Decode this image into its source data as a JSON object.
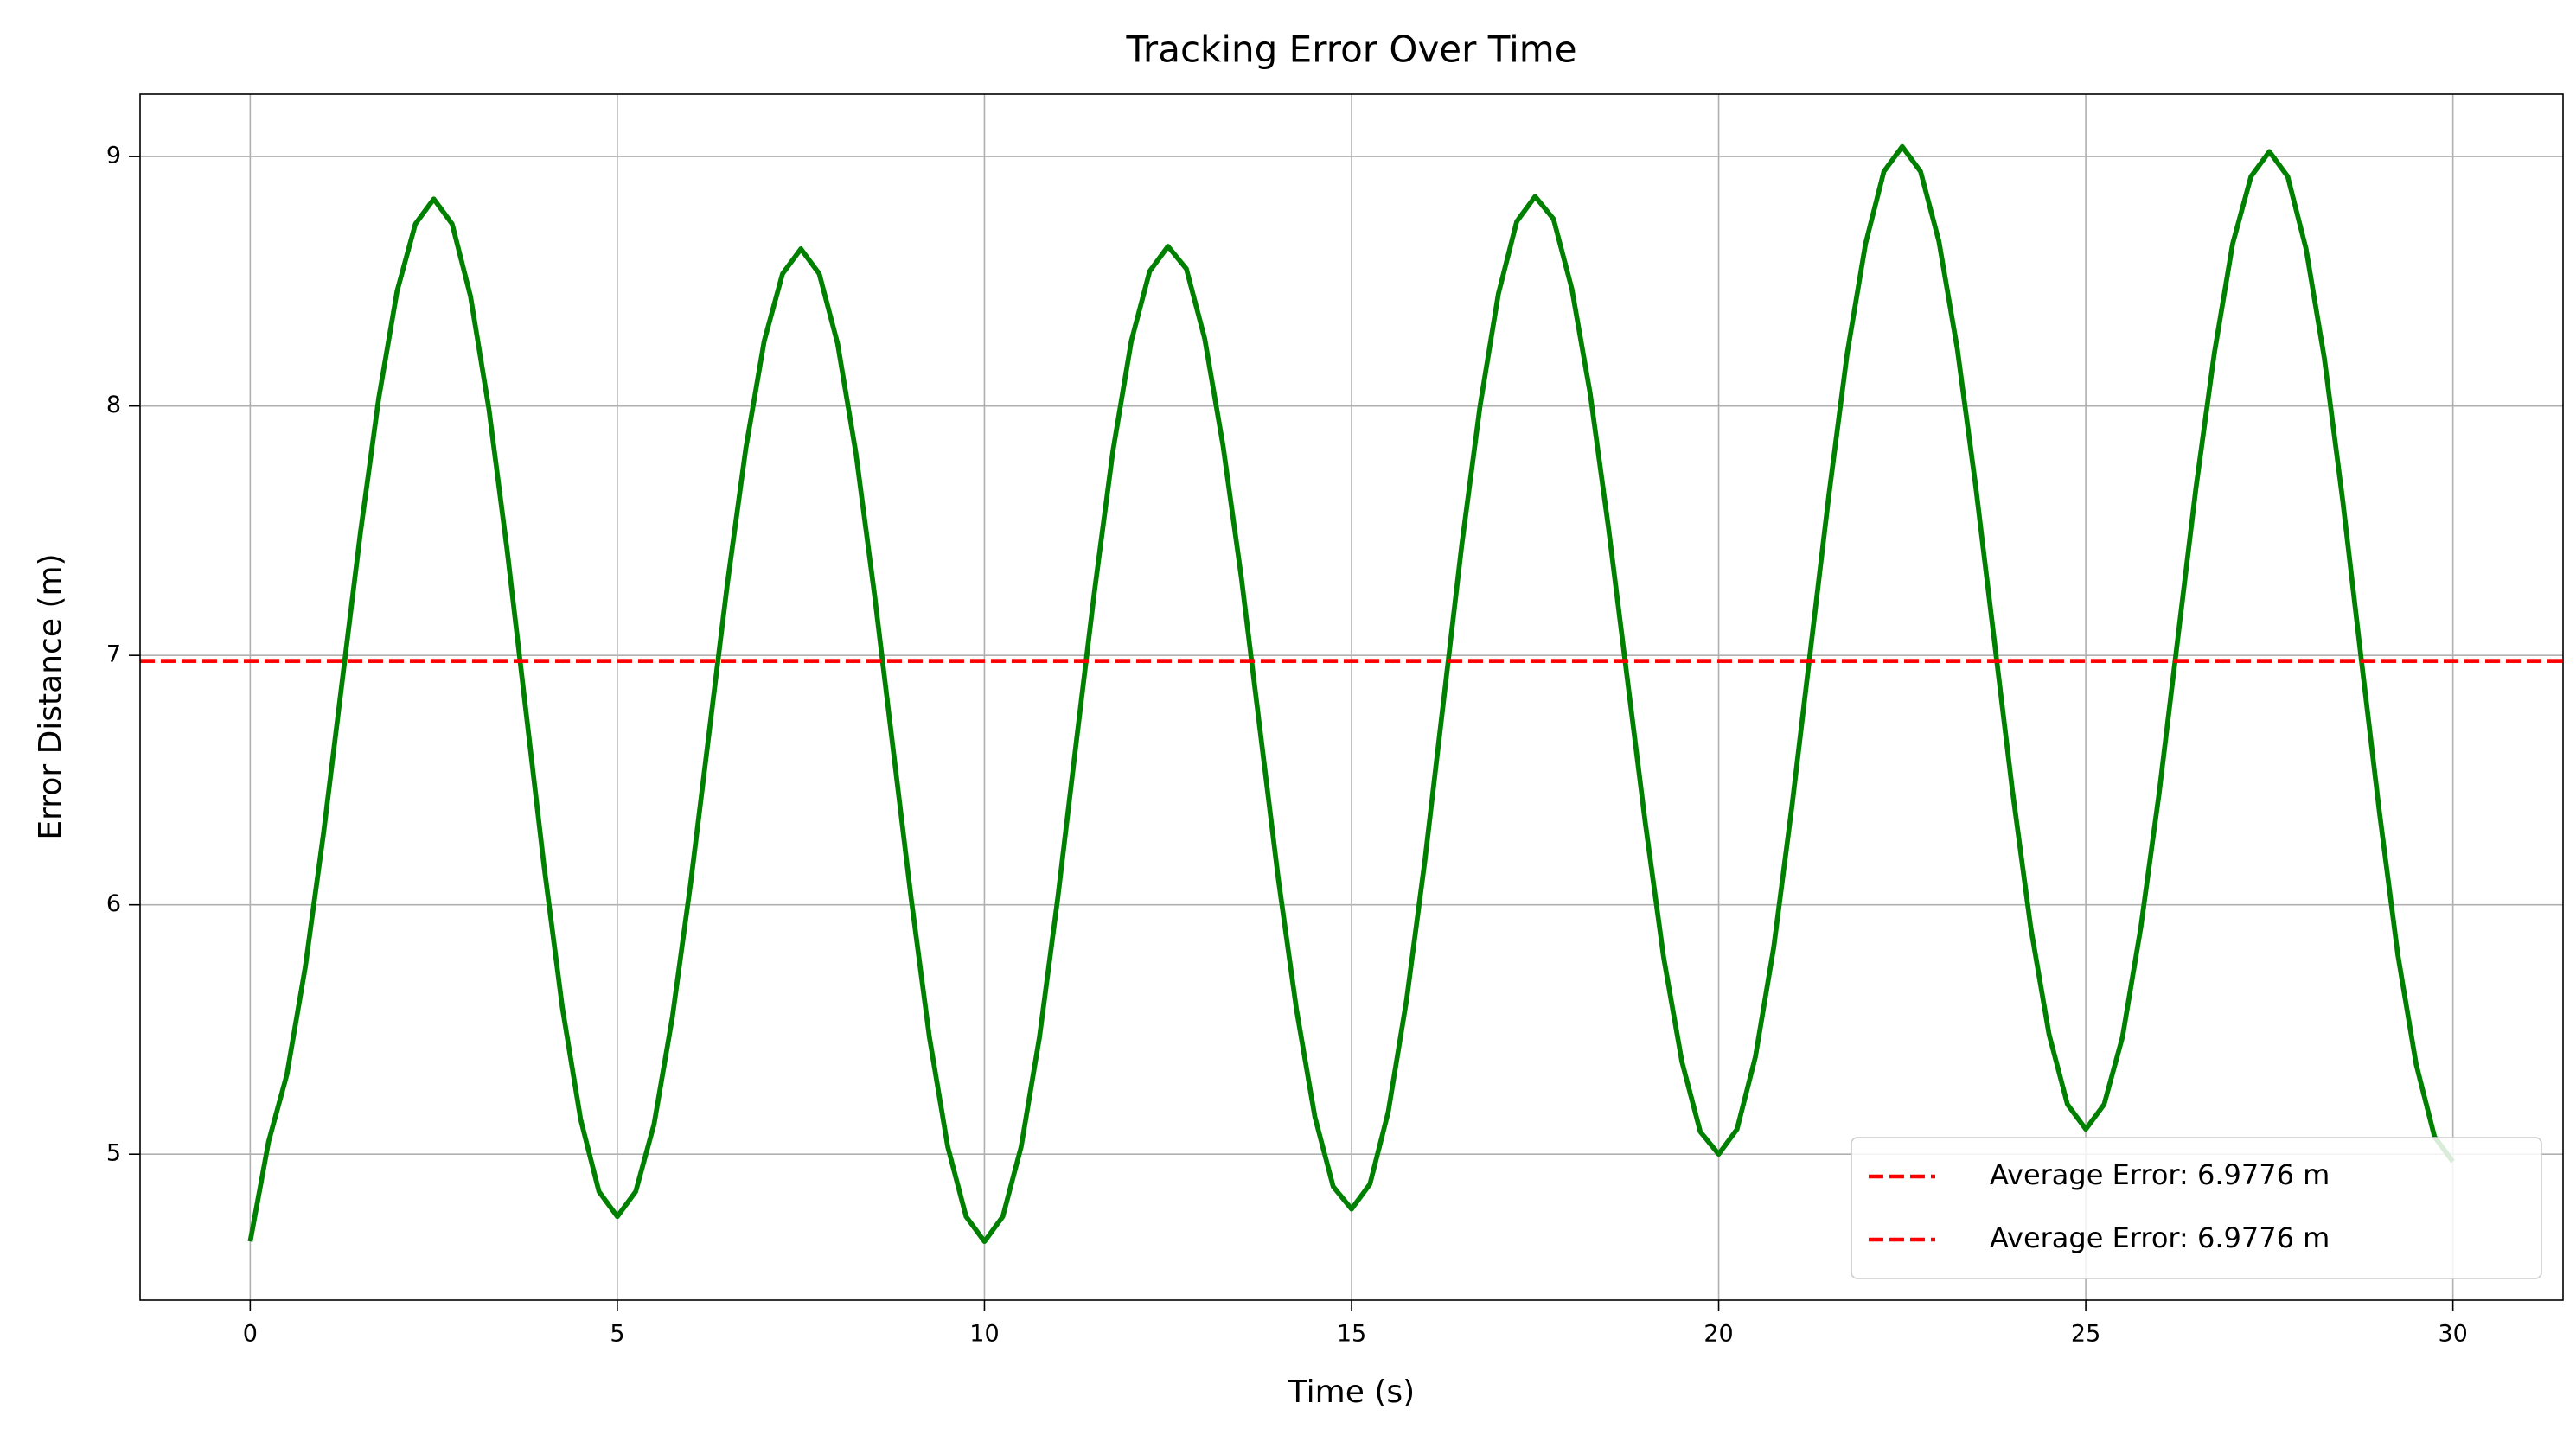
{
  "chart_data": {
    "type": "line",
    "title": "Tracking Error Over Time",
    "x_label": "Time (s)",
    "y_label": "Error Distance (m)",
    "x": [
      0,
      0.25,
      0.5,
      0.75,
      1,
      1.25,
      1.5,
      1.75,
      2,
      2.25,
      2.5,
      2.75,
      3,
      3.25,
      3.5,
      3.75,
      4,
      4.25,
      4.5,
      4.75,
      5,
      5.25,
      5.5,
      5.75,
      6,
      6.25,
      6.5,
      6.75,
      7,
      7.25,
      7.5,
      7.75,
      8,
      8.25,
      8.5,
      8.75,
      9,
      9.25,
      9.5,
      9.75,
      10,
      10.25,
      10.5,
      10.75,
      11,
      11.25,
      11.5,
      11.75,
      12,
      12.25,
      12.5,
      12.75,
      13,
      13.25,
      13.5,
      13.75,
      14,
      14.25,
      14.5,
      14.75,
      15,
      15.25,
      15.5,
      15.75,
      16,
      16.25,
      16.5,
      16.75,
      17,
      17.25,
      17.5,
      17.75,
      18,
      18.25,
      18.5,
      18.75,
      19,
      19.25,
      19.5,
      19.75,
      20,
      20.25,
      20.5,
      20.75,
      21,
      21.25,
      21.5,
      21.75,
      22,
      22.25,
      22.5,
      22.75,
      23,
      23.25,
      23.5,
      23.75,
      24,
      24.25,
      24.5,
      24.75,
      25,
      25.25,
      25.5,
      25.75,
      26,
      26.25,
      26.5,
      26.75,
      27,
      27.25,
      27.5,
      27.75,
      28,
      28.25,
      28.5,
      28.75,
      29,
      29.25,
      29.5,
      29.75,
      30
    ],
    "series": [
      {
        "color": "green",
        "values": [
          4.65,
          5.05,
          5.32,
          5.75,
          6.29,
          6.89,
          7.49,
          8.03,
          8.46,
          8.73,
          8.83,
          8.73,
          8.44,
          7.99,
          7.42,
          6.79,
          6.16,
          5.59,
          5.14,
          4.85,
          4.75,
          4.85,
          5.12,
          5.55,
          6.09,
          6.69,
          7.29,
          7.83,
          8.26,
          8.53,
          8.63,
          8.53,
          8.25,
          7.81,
          7.25,
          6.64,
          6.03,
          5.47,
          5.03,
          4.75,
          4.65,
          4.75,
          5.03,
          5.47,
          6.03,
          6.65,
          7.26,
          7.82,
          8.26,
          8.54,
          8.64,
          8.55,
          8.27,
          7.84,
          7.31,
          6.71,
          6.11,
          5.58,
          5.15,
          4.87,
          4.78,
          4.88,
          5.17,
          5.62,
          6.18,
          6.81,
          7.44,
          8.0,
          8.45,
          8.74,
          8.84,
          8.75,
          8.47,
          8.05,
          7.51,
          6.92,
          6.33,
          5.79,
          5.37,
          5.09,
          5.0,
          5.1,
          5.39,
          5.83,
          6.4,
          7.02,
          7.64,
          8.21,
          8.65,
          8.94,
          9.04,
          8.94,
          8.66,
          8.23,
          7.68,
          7.07,
          6.46,
          5.91,
          5.48,
          5.2,
          5.1,
          5.2,
          5.47,
          5.91,
          6.45,
          7.06,
          7.67,
          8.21,
          8.65,
          8.92,
          9.02,
          8.92,
          8.63,
          8.19,
          7.62,
          6.99,
          6.37,
          5.8,
          5.36,
          5.07,
          4.97
        ]
      }
    ],
    "reference_lines": [
      {
        "name": "Average Error: 6.9776 m",
        "value": 6.9776,
        "color": "red"
      },
      {
        "name": "Average Error: 6.9776 m",
        "value": 6.9776,
        "color": "red"
      }
    ],
    "xlim": [
      -1.5,
      31.5
    ],
    "ylim": [
      4.415,
      9.25
    ],
    "xticks": [
      0,
      5,
      10,
      15,
      20,
      25,
      30
    ],
    "yticks": [
      5,
      6,
      7,
      8,
      9
    ],
    "grid": true,
    "legend_position": "lower right"
  }
}
